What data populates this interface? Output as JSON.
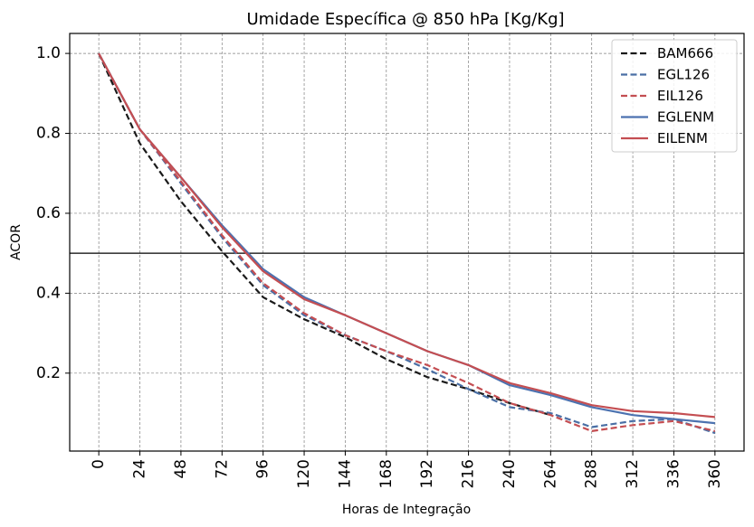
{
  "chart_data": {
    "type": "line",
    "title": "Umidade Específica @ 850 hPa [Kg/Kg]",
    "xlabel": "Horas de Integração",
    "ylabel": "ACOR",
    "x": [
      0,
      24,
      48,
      72,
      96,
      120,
      144,
      168,
      192,
      216,
      240,
      264,
      288,
      312,
      336,
      360
    ],
    "x_tick_labels": [
      "0",
      "24",
      "48",
      "72",
      "96",
      "120",
      "144",
      "168",
      "192",
      "216",
      "240",
      "264",
      "288",
      "312",
      "336",
      "360"
    ],
    "y_ticks": [
      0.2,
      0.4,
      0.6,
      0.8,
      1.0
    ],
    "y_tick_labels": [
      "0.2",
      "0.4",
      "0.6",
      "0.8",
      "1.0"
    ],
    "ylim": [
      0.005,
      1.05
    ],
    "reference_line": 0.5,
    "grid": true,
    "legend_position": "top-right",
    "series": [
      {
        "name": "BAM666",
        "color": "#1a1a1a",
        "dashed": true,
        "values": [
          1.0,
          0.775,
          0.63,
          0.505,
          0.39,
          0.335,
          0.29,
          0.235,
          0.19,
          0.16,
          0.125,
          0.095,
          null,
          null,
          null,
          null
        ]
      },
      {
        "name": "EGL126",
        "color": "#4a6fa5",
        "dashed": true,
        "values": [
          1.0,
          0.81,
          0.675,
          0.54,
          0.42,
          0.345,
          0.295,
          0.255,
          0.21,
          0.16,
          0.115,
          0.1,
          0.065,
          0.08,
          0.085,
          0.05
        ]
      },
      {
        "name": "EIL126",
        "color": "#c44e52",
        "dashed": true,
        "values": [
          1.0,
          0.81,
          0.68,
          0.545,
          0.425,
          0.35,
          0.295,
          0.255,
          0.22,
          0.175,
          0.125,
          0.095,
          0.055,
          0.07,
          0.08,
          0.055
        ]
      },
      {
        "name": "EGLENM",
        "color": "#4c72b0",
        "dashed": false,
        "values": [
          1.0,
          0.81,
          0.69,
          0.57,
          0.46,
          0.39,
          0.345,
          0.3,
          0.255,
          0.22,
          0.17,
          0.145,
          0.115,
          0.095,
          0.085,
          0.075
        ]
      },
      {
        "name": "EILENM",
        "color": "#c44e52",
        "dashed": false,
        "values": [
          1.0,
          0.81,
          0.69,
          0.565,
          0.455,
          0.385,
          0.345,
          0.3,
          0.255,
          0.22,
          0.175,
          0.15,
          0.12,
          0.105,
          0.1,
          0.09
        ]
      }
    ]
  }
}
